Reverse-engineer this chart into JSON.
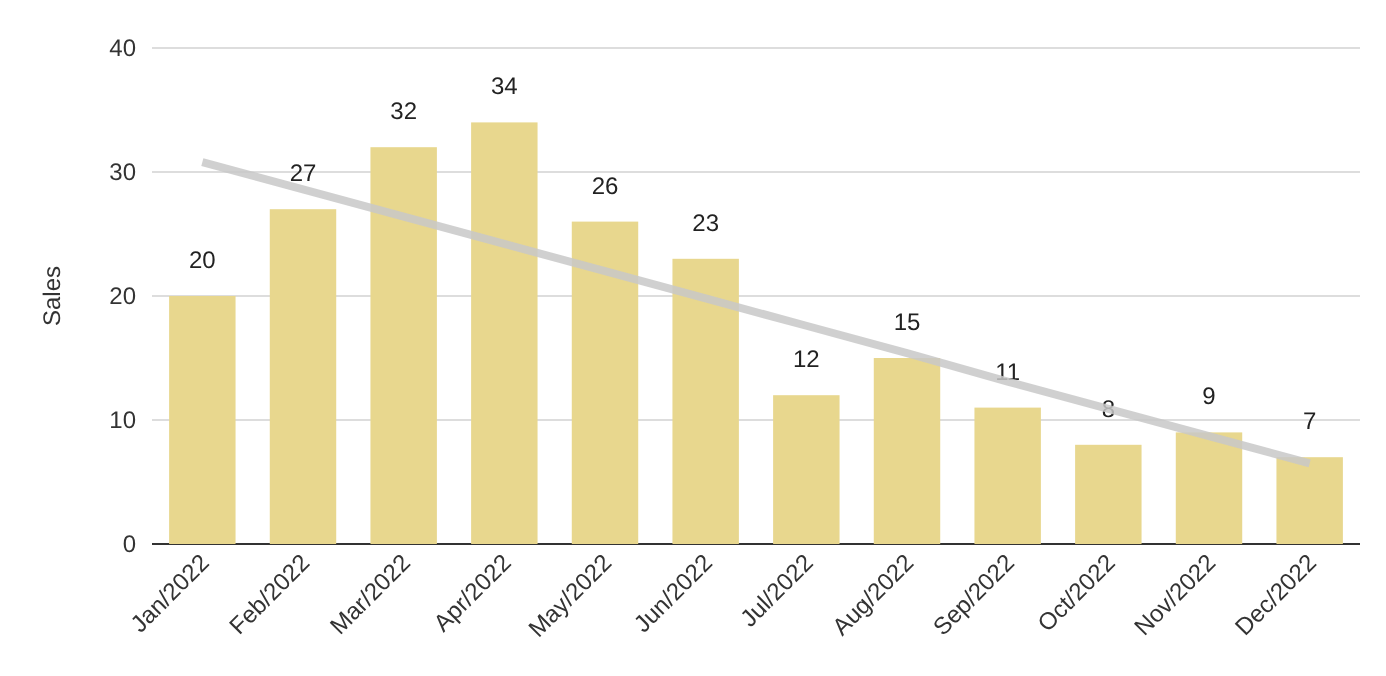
{
  "chart_data": {
    "type": "bar",
    "ylabel": "Sales",
    "categories": [
      "Jan/2022",
      "Feb/2022",
      "Mar/2022",
      "Apr/2022",
      "May/2022",
      "Jun/2022",
      "Jul/2022",
      "Aug/2022",
      "Sep/2022",
      "Oct/2022",
      "Nov/2022",
      "Dec/2022"
    ],
    "series": [
      {
        "color": "#e8d78e",
        "values": [
          20,
          27,
          32,
          34,
          26,
          23,
          12,
          15,
          11,
          8,
          9,
          7
        ],
        "value_labels": [
          "20",
          "27",
          "32",
          "34",
          "26",
          "23",
          "12",
          "15",
          "11",
          "8",
          "9",
          "7"
        ]
      },
      {
        "type": "line",
        "color": "#c8c8c8",
        "values": [
          30.8,
          28.6,
          26.4,
          24.2,
          22.0,
          19.8,
          17.6,
          15.4,
          13.1,
          10.9,
          8.7,
          6.5
        ]
      }
    ],
    "ylim": [
      0,
      40
    ],
    "yticks": [
      0,
      10,
      20,
      30,
      40
    ],
    "grid": "y"
  }
}
